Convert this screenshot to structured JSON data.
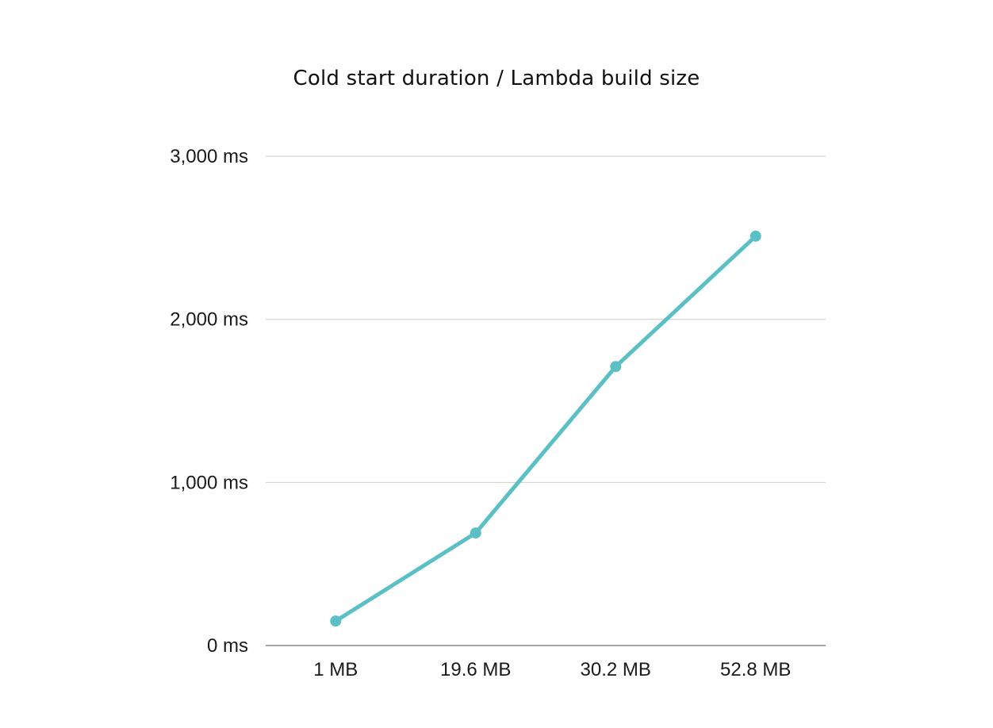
{
  "chart_data": {
    "type": "line",
    "title": "Cold start duration / Lambda build size",
    "xlabel": "",
    "ylabel": "",
    "categories": [
      "1 MB",
      "19.6 MB",
      "30.2 MB",
      "52.8 MB"
    ],
    "series": [
      {
        "values": [
          150,
          690,
          1710,
          2510
        ],
        "color": "#5BC0C6"
      }
    ],
    "ylim": [
      0,
      3000
    ],
    "yticks": [
      0,
      1000,
      2000,
      3000
    ],
    "ytick_labels": [
      "0 ms",
      "1,000 ms",
      "2,000 ms",
      "3,000 ms"
    ],
    "grid": true,
    "legend": "none",
    "colors": {
      "line": "#5BC0C6",
      "grid": "#cccccc",
      "axis": "#888888",
      "text": "#1a1a1a"
    }
  }
}
